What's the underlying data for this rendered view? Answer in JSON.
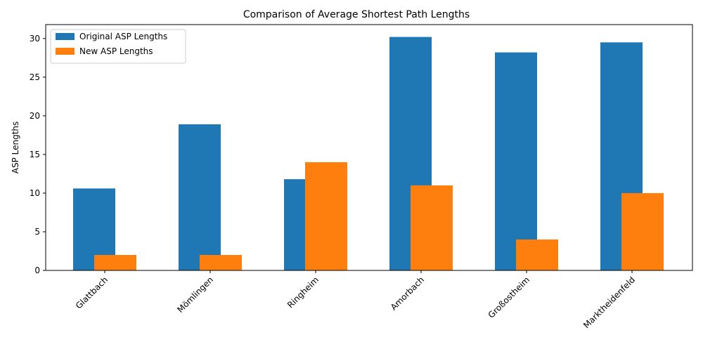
{
  "chart_data": {
    "type": "bar",
    "title": "Comparison of Average Shortest Path Lengths",
    "xlabel": "",
    "ylabel": "ASP Lengths",
    "categories": [
      "Glattbach",
      "Mömlingen",
      "Ringheim",
      "Amorbach",
      "Großostheim",
      "Marktheidenfeld"
    ],
    "series": [
      {
        "name": "Original ASP Lengths",
        "color": "#1f77b4",
        "values": [
          10.6,
          18.9,
          11.8,
          30.2,
          28.2,
          29.5
        ]
      },
      {
        "name": "New ASP Lengths",
        "color": "#ff7f0e",
        "values": [
          2,
          2,
          14,
          11,
          4,
          10
        ]
      }
    ],
    "ylim": [
      0,
      31.8
    ],
    "yticks": [
      0,
      5,
      10,
      15,
      20,
      25,
      30
    ],
    "xtick_rotation_deg": 45,
    "grid": false,
    "legend_position": "top-left"
  }
}
